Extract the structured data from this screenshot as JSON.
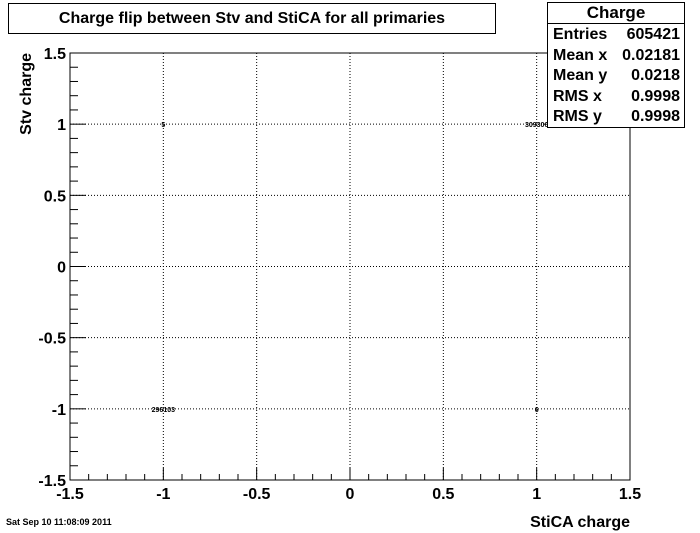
{
  "chart_data": {
    "type": "scatter",
    "title": "Charge flip between Stv and StiCA for all primaries",
    "xlabel": "StiCA charge",
    "ylabel": "Stv charge",
    "xlim": [
      -1.5,
      1.5
    ],
    "ylim": [
      -1.5,
      1.5
    ],
    "xticks": [
      "-1.5",
      "-1",
      "-0.5",
      "0",
      "0.5",
      "1",
      "1.5"
    ],
    "yticks": [
      "-1.5",
      "-1",
      "-0.5",
      "0",
      "0.5",
      "1",
      "1.5"
    ],
    "grid": true,
    "points": [
      {
        "x": -1,
        "y": 1,
        "label": "5"
      },
      {
        "x": 1,
        "y": 1,
        "label": "309306"
      },
      {
        "x": -1,
        "y": -1,
        "label": "296103"
      },
      {
        "x": 1,
        "y": -1,
        "label": "6"
      }
    ]
  },
  "stats": {
    "header": "Charge",
    "rows": [
      {
        "label": "Entries",
        "value": "605421"
      },
      {
        "label": "Mean x",
        "value": "0.02181"
      },
      {
        "label": "Mean y",
        "value": "0.0218"
      },
      {
        "label": "RMS x",
        "value": "0.9998"
      },
      {
        "label": "RMS y",
        "value": "0.9998"
      }
    ]
  },
  "timestamp": "Sat Sep 10 11:08:09 2011"
}
